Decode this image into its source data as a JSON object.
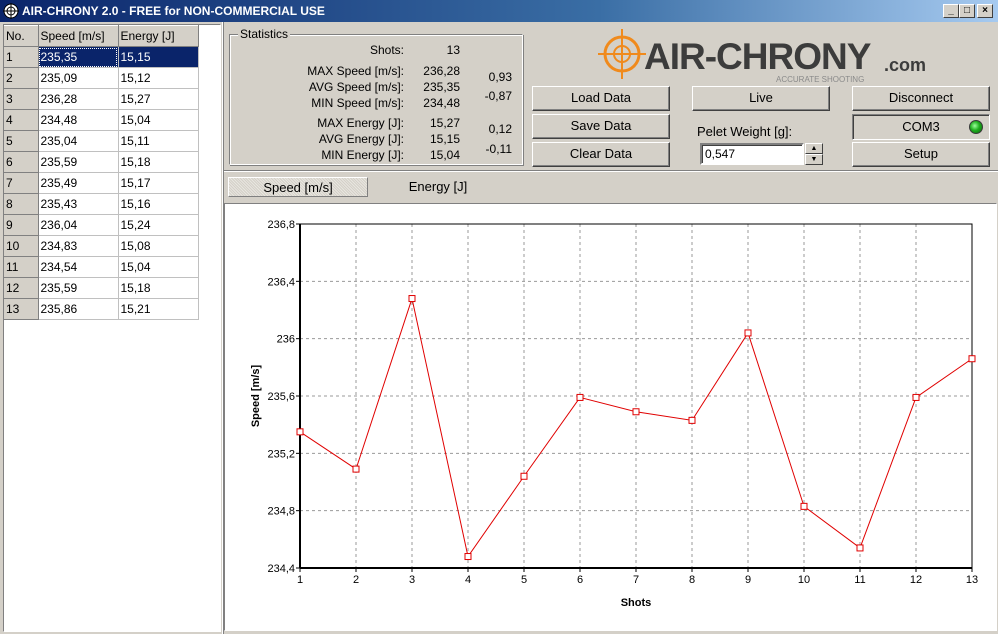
{
  "window": {
    "title": "AIR-CHRONY 2.0 - FREE for NON-COMMERCIAL USE",
    "minimize": "_",
    "maximize": "□",
    "close": "×"
  },
  "table": {
    "headers": [
      "No.",
      "Speed [m/s]",
      "Energy [J]"
    ],
    "rows": [
      {
        "no": "1",
        "speed": "235,35",
        "energy": "15,15"
      },
      {
        "no": "2",
        "speed": "235,09",
        "energy": "15,12"
      },
      {
        "no": "3",
        "speed": "236,28",
        "energy": "15,27"
      },
      {
        "no": "4",
        "speed": "234,48",
        "energy": "15,04"
      },
      {
        "no": "5",
        "speed": "235,04",
        "energy": "15,11"
      },
      {
        "no": "6",
        "speed": "235,59",
        "energy": "15,18"
      },
      {
        "no": "7",
        "speed": "235,49",
        "energy": "15,17"
      },
      {
        "no": "8",
        "speed": "235,43",
        "energy": "15,16"
      },
      {
        "no": "9",
        "speed": "236,04",
        "energy": "15,24"
      },
      {
        "no": "10",
        "speed": "234,83",
        "energy": "15,08"
      },
      {
        "no": "11",
        "speed": "234,54",
        "energy": "15,04"
      },
      {
        "no": "12",
        "speed": "235,59",
        "energy": "15,18"
      },
      {
        "no": "13",
        "speed": "235,86",
        "energy": "15,21"
      }
    ]
  },
  "statistics": {
    "title": "Statistics",
    "shots_label": "Shots:",
    "shots": "13",
    "max_speed_label": "MAX Speed [m/s]:",
    "max_speed": "236,28",
    "max_speed_diff": "0,93",
    "avg_speed_label": "AVG Speed [m/s]:",
    "avg_speed": "235,35",
    "min_speed_label": "MIN Speed [m/s]:",
    "min_speed": "234,48",
    "min_speed_diff": "-0,87",
    "max_energy_label": "MAX Energy [J]:",
    "max_energy": "15,27",
    "max_energy_diff": "0,12",
    "avg_energy_label": "AVG Energy [J]:",
    "avg_energy": "15,15",
    "min_energy_label": "MIN Energy [J]:",
    "min_energy": "15,04",
    "min_energy_diff": "-0,11"
  },
  "buttons": {
    "load": "Load Data",
    "save": "Save Data",
    "clear": "Clear Data",
    "live": "Live",
    "disconnect": "Disconnect",
    "setup": "Setup"
  },
  "pellet": {
    "label": "Pelet Weight [g]:",
    "value": "0,547"
  },
  "port": {
    "name": "COM3",
    "status_color": "#1fae1f"
  },
  "logo": {
    "text": "AIR-CHRONY",
    "suffix": ".com",
    "tagline": "ACCURATE SHOOTING",
    "brand_color": "#f08a1c"
  },
  "tabs": [
    {
      "label": "Speed [m/s]",
      "active": true
    },
    {
      "label": "Energy [J]",
      "active": false
    }
  ],
  "chart_data": {
    "type": "line",
    "x": [
      1,
      2,
      3,
      4,
      5,
      6,
      7,
      8,
      9,
      10,
      11,
      12,
      13
    ],
    "values": [
      235.35,
      235.09,
      236.28,
      234.48,
      235.04,
      235.59,
      235.49,
      235.43,
      236.04,
      234.83,
      234.54,
      235.59,
      235.86
    ],
    "xlabel": "Shots",
    "ylabel": "Speed [m/s]",
    "xlim": [
      1,
      13
    ],
    "ylim": [
      234.4,
      236.8
    ],
    "yticks": [
      "234,4",
      "234,8",
      "235,2",
      "235,6",
      "236",
      "236,4",
      "236,8"
    ],
    "ytick_values": [
      234.4,
      234.8,
      235.2,
      235.6,
      236.0,
      236.4,
      236.8
    ],
    "xticks": [
      "1",
      "2",
      "3",
      "4",
      "5",
      "6",
      "7",
      "8",
      "9",
      "10",
      "11",
      "12",
      "13"
    ],
    "grid": true,
    "line_color": "#e00000"
  }
}
